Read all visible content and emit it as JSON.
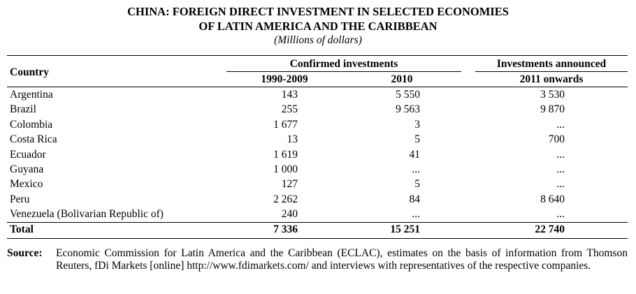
{
  "title": {
    "line1": "CHINA: FOREIGN DIRECT INVESTMENT IN SELECTED ECONOMIES",
    "line2": "OF LATIN AMERICA AND THE CARIBBEAN",
    "unit": "(Millions of dollars)"
  },
  "table": {
    "country_header": "Country",
    "group_confirmed": "Confirmed investments",
    "group_announced": "Investments announced",
    "col_1990_2009": "1990-2009",
    "col_2010": "2010",
    "col_2011": "2011 onwards",
    "rows": [
      {
        "country": "Argentina",
        "v1": "143",
        "v2": "5 550",
        "v3": "3 530"
      },
      {
        "country": "Brazil",
        "v1": "255",
        "v2": "9 563",
        "v3": "9 870"
      },
      {
        "country": "Colombia",
        "v1": "1 677",
        "v2": "3",
        "v3": "..."
      },
      {
        "country": "Costa Rica",
        "v1": "13",
        "v2": "5",
        "v3": "700"
      },
      {
        "country": "Ecuador",
        "v1": "1 619",
        "v2": "41",
        "v3": "..."
      },
      {
        "country": "Guyana",
        "v1": "1 000",
        "v2": "...",
        "v3": "..."
      },
      {
        "country": "Mexico",
        "v1": "127",
        "v2": "5",
        "v3": "..."
      },
      {
        "country": "Peru",
        "v1": "2 262",
        "v2": "84",
        "v3": "8 640"
      },
      {
        "country": "Venezuela (Bolivarian Republic of)",
        "v1": "240",
        "v2": "...",
        "v3": "..."
      }
    ],
    "total": {
      "country": "Total",
      "v1": "7 336",
      "v2": "15 251",
      "v3": "22 740"
    }
  },
  "source": {
    "label": "Source:",
    "text": "Economic Commission for Latin America and the Caribbean (ECLAC), estimates on the basis of information from Thomson Reuters, fDi Markets [online] http://www.fdimarkets.com/ and interviews with representatives of the respective companies."
  }
}
